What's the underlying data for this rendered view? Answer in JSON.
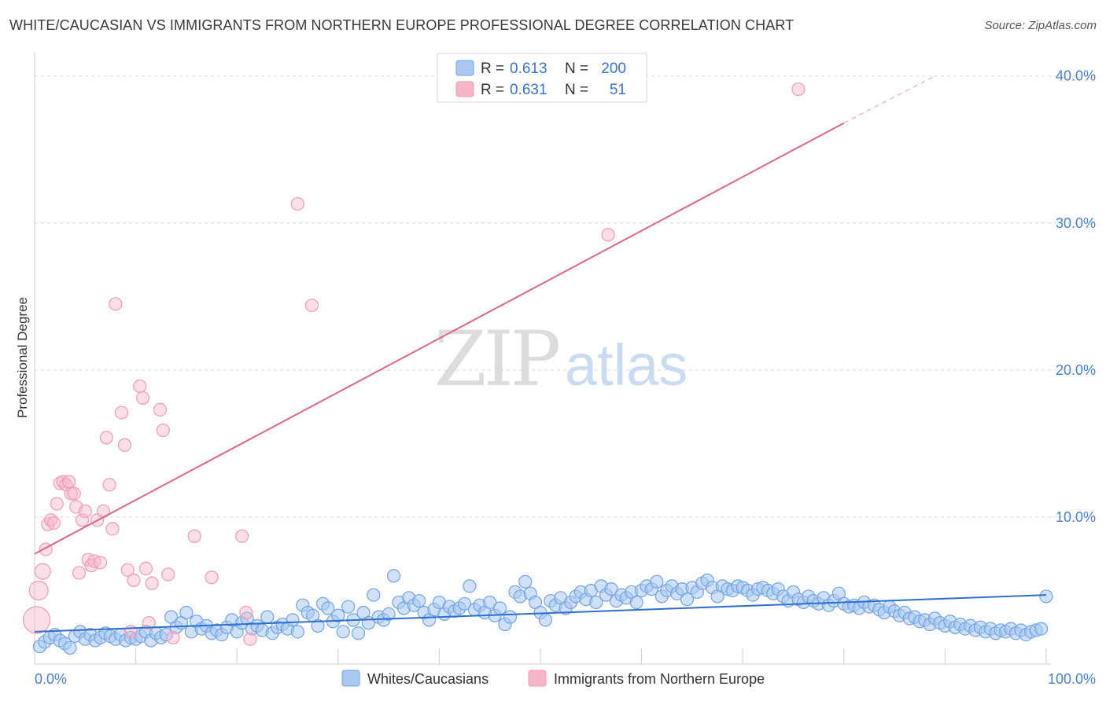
{
  "title": "WHITE/CAUCASIAN VS IMMIGRANTS FROM NORTHERN EUROPE PROFESSIONAL DEGREE CORRELATION CHART",
  "source": "Source: ZipAtlas.com",
  "watermark": {
    "zip": "ZIP",
    "atlas": "atlas"
  },
  "legend": {
    "rows": [
      {
        "r_label": "R =",
        "r_value": "0.613",
        "n_label": "N =",
        "n_value": "200",
        "color": "#a9c8f0"
      },
      {
        "r_label": "R =",
        "r_value": "0.631",
        "n_label": "N =",
        "n_value": "51",
        "color": "#f7b6c8"
      }
    ]
  },
  "chart_data": {
    "type": "scatter",
    "xlabel": "",
    "ylabel": "Professional Degree",
    "xlim": [
      0,
      100
    ],
    "ylim": [
      0,
      41
    ],
    "x_tick_labels": [
      "0.0%",
      "100.0%"
    ],
    "y_ticks": [
      10,
      20,
      30,
      40
    ],
    "y_tick_labels": [
      "10.0%",
      "20.0%",
      "30.0%",
      "40.0%"
    ],
    "grid": true,
    "legend_position": "bottom",
    "series": [
      {
        "name": "Whites/Caucasians",
        "color": "#6fa3e6",
        "trend": {
          "x": [
            0,
            100
          ],
          "y": [
            2.2,
            4.7
          ]
        },
        "points": [
          [
            0.5,
            1.2
          ],
          [
            1,
            1.5
          ],
          [
            1.5,
            1.8
          ],
          [
            2,
            2.0
          ],
          [
            2.5,
            1.6
          ],
          [
            3,
            1.4
          ],
          [
            3.5,
            1.1
          ],
          [
            4,
            1.9
          ],
          [
            4.5,
            2.2
          ],
          [
            5,
            1.7
          ],
          [
            5.5,
            2.0
          ],
          [
            6,
            1.6
          ],
          [
            6.5,
            1.8
          ],
          [
            7,
            2.1
          ],
          [
            7.5,
            1.9
          ],
          [
            8,
            1.7
          ],
          [
            8.5,
            2.0
          ],
          [
            9,
            1.6
          ],
          [
            9.5,
            1.8
          ],
          [
            10,
            1.7
          ],
          [
            10.5,
            1.9
          ],
          [
            11,
            2.2
          ],
          [
            11.5,
            1.6
          ],
          [
            12,
            2.1
          ],
          [
            12.5,
            1.8
          ],
          [
            13,
            2.0
          ],
          [
            13.5,
            3.2
          ],
          [
            14,
            2.5
          ],
          [
            14.5,
            2.8
          ],
          [
            15,
            3.5
          ],
          [
            15.5,
            2.2
          ],
          [
            16,
            2.9
          ],
          [
            16.5,
            2.4
          ],
          [
            17,
            2.6
          ],
          [
            17.5,
            2.1
          ],
          [
            18,
            2.3
          ],
          [
            18.5,
            2.0
          ],
          [
            19,
            2.5
          ],
          [
            19.5,
            3.0
          ],
          [
            20,
            2.2
          ],
          [
            20.5,
            2.8
          ],
          [
            21,
            3.1
          ],
          [
            21.5,
            2.4
          ],
          [
            22,
            2.6
          ],
          [
            22.5,
            2.3
          ],
          [
            23,
            3.2
          ],
          [
            23.5,
            2.1
          ],
          [
            24,
            2.5
          ],
          [
            24.5,
            2.7
          ],
          [
            25,
            2.4
          ],
          [
            25.5,
            3.0
          ],
          [
            26,
            2.2
          ],
          [
            26.5,
            4.0
          ],
          [
            27,
            3.5
          ],
          [
            27.5,
            3.3
          ],
          [
            28,
            2.6
          ],
          [
            28.5,
            4.1
          ],
          [
            29,
            3.8
          ],
          [
            29.5,
            2.9
          ],
          [
            30,
            3.3
          ],
          [
            30.5,
            2.2
          ],
          [
            31,
            3.9
          ],
          [
            31.5,
            3.0
          ],
          [
            32,
            2.1
          ],
          [
            32.5,
            3.5
          ],
          [
            33,
            2.8
          ],
          [
            33.5,
            4.7
          ],
          [
            34,
            3.2
          ],
          [
            34.5,
            3.0
          ],
          [
            35,
            3.4
          ],
          [
            35.5,
            6.0
          ],
          [
            36,
            4.2
          ],
          [
            36.5,
            3.8
          ],
          [
            37,
            4.5
          ],
          [
            37.5,
            4.0
          ],
          [
            38,
            4.3
          ],
          [
            38.5,
            3.5
          ],
          [
            39,
            3.0
          ],
          [
            39.5,
            3.7
          ],
          [
            40,
            4.2
          ],
          [
            40.5,
            3.4
          ],
          [
            41,
            3.9
          ],
          [
            41.5,
            3.6
          ],
          [
            42,
            3.8
          ],
          [
            42.5,
            4.1
          ],
          [
            43,
            5.3
          ],
          [
            43.5,
            3.7
          ],
          [
            44,
            4.0
          ],
          [
            44.5,
            3.5
          ],
          [
            45,
            4.2
          ],
          [
            45.5,
            3.3
          ],
          [
            46,
            3.8
          ],
          [
            46.5,
            2.7
          ],
          [
            47,
            3.2
          ],
          [
            47.5,
            4.9
          ],
          [
            48,
            4.6
          ],
          [
            48.5,
            5.6
          ],
          [
            49,
            4.8
          ],
          [
            49.5,
            4.2
          ],
          [
            50,
            3.5
          ],
          [
            50.5,
            3.0
          ],
          [
            51,
            4.3
          ],
          [
            51.5,
            4.0
          ],
          [
            52,
            4.5
          ],
          [
            52.5,
            3.8
          ],
          [
            53,
            4.2
          ],
          [
            53.5,
            4.6
          ],
          [
            54,
            4.9
          ],
          [
            54.5,
            4.4
          ],
          [
            55,
            5.0
          ],
          [
            55.5,
            4.2
          ],
          [
            56,
            5.3
          ],
          [
            56.5,
            4.7
          ],
          [
            57,
            5.1
          ],
          [
            57.5,
            4.3
          ],
          [
            58,
            4.7
          ],
          [
            58.5,
            4.5
          ],
          [
            59,
            4.9
          ],
          [
            59.5,
            4.2
          ],
          [
            60,
            5.0
          ],
          [
            60.5,
            5.3
          ],
          [
            61,
            5.1
          ],
          [
            61.5,
            5.6
          ],
          [
            62,
            4.6
          ],
          [
            62.5,
            5.0
          ],
          [
            63,
            5.3
          ],
          [
            63.5,
            4.8
          ],
          [
            64,
            5.1
          ],
          [
            64.5,
            4.4
          ],
          [
            65,
            5.2
          ],
          [
            65.5,
            4.9
          ],
          [
            66,
            5.5
          ],
          [
            66.5,
            5.7
          ],
          [
            67,
            5.2
          ],
          [
            67.5,
            4.6
          ],
          [
            68,
            5.3
          ],
          [
            68.5,
            5.1
          ],
          [
            69,
            5.0
          ],
          [
            69.5,
            5.3
          ],
          [
            70,
            5.2
          ],
          [
            70.5,
            5.0
          ],
          [
            71,
            4.7
          ],
          [
            71.5,
            5.1
          ],
          [
            72,
            5.2
          ],
          [
            72.5,
            5.0
          ],
          [
            73,
            4.8
          ],
          [
            73.5,
            5.1
          ],
          [
            74,
            4.6
          ],
          [
            74.5,
            4.3
          ],
          [
            75,
            4.9
          ],
          [
            75.5,
            4.4
          ],
          [
            76,
            4.2
          ],
          [
            76.5,
            4.6
          ],
          [
            77,
            4.3
          ],
          [
            77.5,
            4.1
          ],
          [
            78,
            4.5
          ],
          [
            78.5,
            4.0
          ],
          [
            79,
            4.3
          ],
          [
            79.5,
            4.8
          ],
          [
            80,
            4.1
          ],
          [
            80.5,
            3.9
          ],
          [
            81,
            4.0
          ],
          [
            81.5,
            3.8
          ],
          [
            82,
            4.2
          ],
          [
            82.5,
            3.9
          ],
          [
            83,
            4.0
          ],
          [
            83.5,
            3.7
          ],
          [
            84,
            3.5
          ],
          [
            84.5,
            3.9
          ],
          [
            85,
            3.6
          ],
          [
            85.5,
            3.3
          ],
          [
            86,
            3.5
          ],
          [
            86.5,
            3.1
          ],
          [
            87,
            3.2
          ],
          [
            87.5,
            2.9
          ],
          [
            88,
            3.0
          ],
          [
            88.5,
            2.7
          ],
          [
            89,
            3.1
          ],
          [
            89.5,
            2.8
          ],
          [
            90,
            2.6
          ],
          [
            90.5,
            2.9
          ],
          [
            91,
            2.5
          ],
          [
            91.5,
            2.7
          ],
          [
            92,
            2.4
          ],
          [
            92.5,
            2.6
          ],
          [
            93,
            2.3
          ],
          [
            93.5,
            2.5
          ],
          [
            94,
            2.2
          ],
          [
            94.5,
            2.4
          ],
          [
            95,
            2.1
          ],
          [
            95.5,
            2.3
          ],
          [
            96,
            2.2
          ],
          [
            96.5,
            2.4
          ],
          [
            97,
            2.1
          ],
          [
            97.5,
            2.3
          ],
          [
            98,
            2.0
          ],
          [
            98.5,
            2.2
          ],
          [
            99,
            2.3
          ],
          [
            99.5,
            2.4
          ],
          [
            100,
            4.6
          ]
        ]
      },
      {
        "name": "Immigrants from Northern Europe",
        "color": "#f19ab5",
        "trend": {
          "x": [
            0,
            80
          ],
          "y": [
            7.5,
            36.8
          ]
        },
        "trend_dashed": {
          "x": [
            80,
            89
          ],
          "y": [
            36.8,
            40.0
          ]
        },
        "points": [
          [
            0.2,
            3.0
          ],
          [
            0.4,
            5.0
          ],
          [
            0.8,
            6.3
          ],
          [
            1.1,
            7.8
          ],
          [
            1.3,
            9.5
          ],
          [
            1.6,
            9.8
          ],
          [
            1.9,
            9.6
          ],
          [
            2.2,
            10.9
          ],
          [
            2.5,
            12.3
          ],
          [
            2.8,
            12.4
          ],
          [
            3.1,
            12.2
          ],
          [
            3.4,
            12.4
          ],
          [
            3.6,
            11.6
          ],
          [
            3.9,
            11.6
          ],
          [
            4.1,
            10.7
          ],
          [
            4.4,
            6.2
          ],
          [
            4.7,
            9.8
          ],
          [
            5.0,
            10.4
          ],
          [
            5.3,
            7.1
          ],
          [
            5.6,
            6.7
          ],
          [
            5.9,
            7.0
          ],
          [
            6.2,
            9.8
          ],
          [
            6.5,
            6.9
          ],
          [
            6.8,
            10.4
          ],
          [
            7.1,
            15.4
          ],
          [
            7.4,
            12.2
          ],
          [
            7.7,
            9.2
          ],
          [
            8.0,
            24.5
          ],
          [
            8.6,
            17.1
          ],
          [
            8.9,
            14.9
          ],
          [
            9.2,
            6.4
          ],
          [
            9.5,
            2.2
          ],
          [
            9.8,
            5.7
          ],
          [
            10.4,
            18.9
          ],
          [
            10.7,
            18.1
          ],
          [
            11.0,
            6.5
          ],
          [
            11.3,
            2.8
          ],
          [
            11.6,
            5.5
          ],
          [
            12.4,
            17.3
          ],
          [
            12.7,
            15.9
          ],
          [
            13.2,
            6.1
          ],
          [
            13.7,
            1.8
          ],
          [
            15.8,
            8.7
          ],
          [
            17.5,
            5.9
          ],
          [
            20.5,
            8.7
          ],
          [
            20.9,
            3.5
          ],
          [
            21.3,
            1.7
          ],
          [
            26.0,
            31.3
          ],
          [
            27.4,
            24.4
          ],
          [
            56.7,
            29.2
          ],
          [
            75.5,
            39.1
          ]
        ]
      }
    ]
  }
}
